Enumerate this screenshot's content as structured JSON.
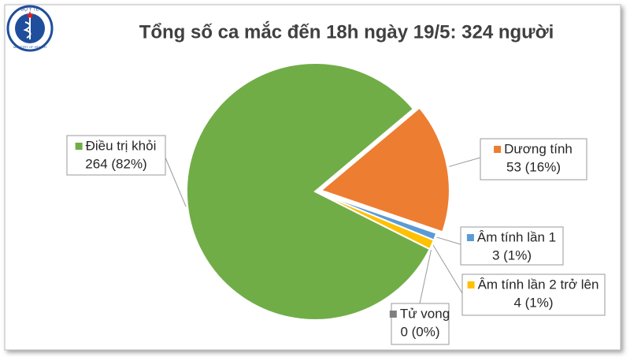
{
  "logo": {
    "top": "BỘ Y TẾ",
    "bottom": "MINISTRY OF HEALTH"
  },
  "chart_data": {
    "type": "pie",
    "title": "Tổng số ca mắc đến 18h ngày 19/5: 324 người",
    "categories": [
      "Dương tính",
      "Âm tính lần 1",
      "Âm tính lần 2 trở lên",
      "Tử vong",
      "Điều trị khỏi"
    ],
    "values": [
      53,
      3,
      4,
      0,
      264
    ],
    "value_labels": [
      "53 (16%)",
      "3 (1%)",
      "4 (1%)",
      "0 (0%)",
      "264 (82%)"
    ],
    "colors": [
      "#ed7d31",
      "#5b9bd5",
      "#ffc000",
      "#7f7f7f",
      "#70ad47"
    ]
  }
}
